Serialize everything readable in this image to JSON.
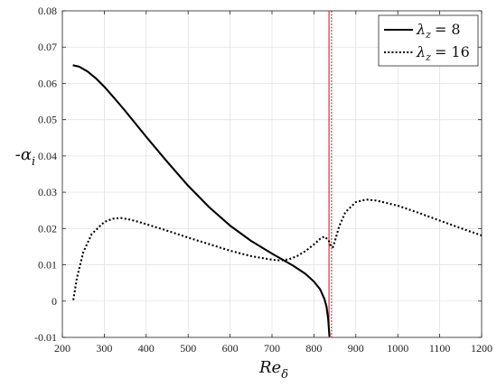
{
  "chart_data": {
    "type": "line",
    "xlabel": "Re",
    "xlabel_sub": "δ",
    "ylabel": "-α",
    "ylabel_sub": "i",
    "xlim": [
      200,
      1200
    ],
    "ylim": [
      -0.01,
      0.08
    ],
    "xticks": [
      200,
      300,
      400,
      500,
      600,
      700,
      800,
      900,
      1000,
      1100,
      1200
    ],
    "yticks": [
      -0.01,
      0,
      0.01,
      0.02,
      0.03,
      0.04,
      0.05,
      0.06,
      0.07,
      0.08
    ],
    "ytick_labels": [
      "-0.01",
      "0",
      "0.01",
      "0.02",
      "0.03",
      "0.04",
      "0.05",
      "0.06",
      "0.07",
      "0.08"
    ],
    "grid": true,
    "legend_position": "top-right",
    "vertical_lines": [
      {
        "x": 836,
        "color": "#cc2222",
        "style": "solid"
      },
      {
        "x": 842,
        "color": "#cc2222",
        "style": "dotted"
      }
    ],
    "series": [
      {
        "name": "λ",
        "name_sub": "z",
        "name_value": "= 8",
        "style": "solid",
        "color": "#000000",
        "x": [
          225,
          240,
          260,
          280,
          300,
          325,
          350,
          400,
          450,
          500,
          550,
          600,
          650,
          700,
          750,
          780,
          800,
          815,
          825,
          830,
          834,
          837
        ],
        "y": [
          0.065,
          0.0646,
          0.0633,
          0.0614,
          0.0591,
          0.0558,
          0.0524,
          0.0453,
          0.0384,
          0.0318,
          0.0259,
          0.0208,
          0.0166,
          0.0131,
          0.0098,
          0.0075,
          0.0054,
          0.0032,
          0.0006,
          -0.0015,
          -0.005,
          -0.0098
        ]
      },
      {
        "name": "λ",
        "name_sub": "z",
        "name_value": "= 16",
        "style": "dotted",
        "color": "#000000",
        "x": [
          226,
          235,
          250,
          270,
          300,
          320,
          340,
          360,
          380,
          400,
          450,
          500,
          550,
          600,
          650,
          700,
          720,
          740,
          760,
          780,
          800,
          815,
          825,
          835,
          840,
          845,
          850,
          860,
          875,
          900,
          925,
          950,
          1000,
          1050,
          1100,
          1150,
          1200
        ],
        "y": [
          0.0003,
          0.0065,
          0.0135,
          0.0185,
          0.0218,
          0.0227,
          0.0229,
          0.0225,
          0.0219,
          0.0212,
          0.0194,
          0.0175,
          0.0157,
          0.0139,
          0.0124,
          0.0114,
          0.0112,
          0.0115,
          0.0124,
          0.0138,
          0.0156,
          0.0172,
          0.0178,
          0.0168,
          0.0152,
          0.0148,
          0.0165,
          0.0205,
          0.0245,
          0.0273,
          0.028,
          0.0277,
          0.0263,
          0.0243,
          0.0222,
          0.0201,
          0.0181
        ]
      }
    ]
  }
}
